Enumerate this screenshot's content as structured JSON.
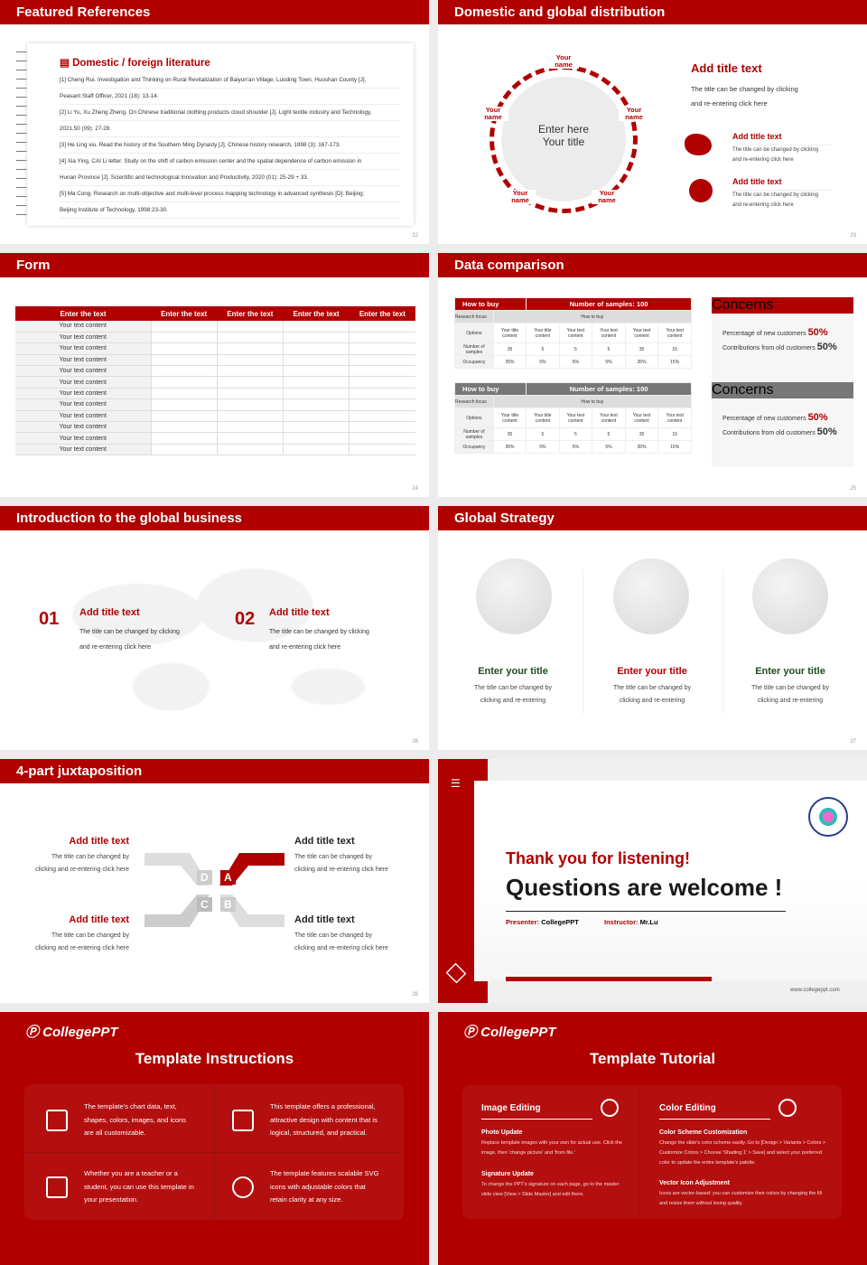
{
  "slides": [
    {
      "title": "Featured References",
      "page": "22",
      "heading": "Domestic / foreign literature",
      "refs": [
        "[1] Cheng Rui. Investigation and Thinking on Rural Revitalization of Baiyun'an Village, Luoding Town, Huoshan County [J].",
        "Peasant Staff Officer, 2021 (18): 13-14.",
        "[2] Li Yu, Xu Zheng Zheng. On Chinese traditional clothing products cloud shoulder [J]. Light textile industry and Technology,",
        "2021,50 (09): 27-28.",
        "[3] He Ling xiu. Read the history of the Southern Ming Dynasty [J]. Chinese history research, 1998 (3): 167-173.",
        "[4] Xia Ying, CAI Li letter. Study on the shift of carbon emission center and the spatial dependence of carbon emission in",
        "Hunan Province [J]. Scientific and technological Innovation and Productivity, 2020 (01): 25-29 + 33.",
        "[5] Ma Cong. Research on multi-objective and multi-level process mapping technology in advanced synthesis [D]. Beijing:",
        "Beijing Institute of Technology, 1998:23-30."
      ]
    },
    {
      "title": "Domestic and global distribution",
      "page": "23",
      "center": "Enter here\nYour title",
      "names": [
        "Your name",
        "Your name",
        "Your name",
        "Your name",
        "Your name"
      ],
      "main_title": "Add title text",
      "main_body": "The title can be changed by clicking\nand re-entering click here",
      "items": [
        {
          "title": "Add title text",
          "body": "The title can be changed by clicking\nand re-entering click here",
          "icon": "china-map-icon"
        },
        {
          "title": "Add title text",
          "body": "The title can be changed by clicking\nand re-entering click here",
          "icon": "globe-icon"
        }
      ]
    },
    {
      "title": "Form",
      "page": "24",
      "headers": [
        "Enter the text",
        "Enter the text",
        "Enter the text",
        "Enter the text",
        "Enter the text"
      ],
      "rows": [
        "Your text content",
        "Your text content",
        "Your text content",
        "Your text content",
        "Your text content",
        "Your text content",
        "Your text content",
        "Your text content",
        "Your text content",
        "Your text content",
        "Your text content",
        "Your text content"
      ]
    },
    {
      "title": "Data comparison",
      "page": "25",
      "tables": [
        {
          "h1": "How to buy",
          "h2": "Number of samples: 100",
          "focus": "Research focus",
          "focus_val": "How to buy",
          "row_labels": [
            "Options",
            "Number of samples",
            "Occupancy"
          ],
          "options": [
            "Your title content",
            "Your title content",
            "Your text content",
            "Your text content",
            "Your text content",
            "Your text content"
          ],
          "samples": [
            "35",
            "5",
            "5",
            "5",
            "35",
            "15"
          ],
          "occupancy": [
            "35%",
            "5%",
            "5%",
            "5%",
            "35%",
            "15%"
          ],
          "color": "#b00000"
        },
        {
          "h1": "How to buy",
          "h2": "Number of samples: 100",
          "focus": "Research focus",
          "focus_val": "How to buy",
          "row_labels": [
            "Options",
            "Number of samples",
            "Occupancy"
          ],
          "options": [
            "Your title content",
            "Your title content",
            "Your text content",
            "Your text content",
            "Your text content",
            "Your text content"
          ],
          "samples": [
            "35",
            "5",
            "5",
            "5",
            "35",
            "15"
          ],
          "occupancy": [
            "35%",
            "5%",
            "5%",
            "5%",
            "35%",
            "15%"
          ],
          "color": "#777777"
        }
      ],
      "concerns": [
        {
          "title": "Concerns",
          "l1": "Percentage of new customers",
          "v1": "50%",
          "l2": "Contributions from old customers",
          "v2": "50%",
          "color": "#b00000"
        },
        {
          "title": "Concerns",
          "l1": "Percentage of new customers",
          "v1": "50%",
          "l2": "Contributions from old customers",
          "v2": "50%",
          "color": "#777777"
        }
      ]
    },
    {
      "title": "Introduction to the global business",
      "page": "26",
      "items": [
        {
          "num": "01",
          "title": "Add title text",
          "body": "The title can be changed by clicking\nand re-entering click here"
        },
        {
          "num": "02",
          "title": "Add title text",
          "body": "The title can be changed by clicking\nand re-entering click here"
        }
      ]
    },
    {
      "title": "Global Strategy",
      "page": "27",
      "items": [
        {
          "title": "Enter your title",
          "body": "The title can be changed by\nclicking and re-entering",
          "color": "#1e4d1e"
        },
        {
          "title": "Enter your title",
          "body": "The title can be changed by\nclicking and re-entering",
          "color": "#b00000"
        },
        {
          "title": "Enter your title",
          "body": "The title can be changed by\nclicking and re-entering",
          "color": "#1e4d1e"
        }
      ]
    },
    {
      "title": "4-part juxtaposition",
      "page": "28",
      "letters": [
        "D",
        "A",
        "C",
        "B"
      ],
      "items": [
        {
          "title": "Add title text",
          "body": "The title can be changed by\nclicking and re-entering click here"
        },
        {
          "title": "Add title text",
          "body": "The title can be changed by\nclicking and re-entering click here"
        },
        {
          "title": "Add title text",
          "body": "The title can be changed by\nclicking and re-entering click here"
        },
        {
          "title": "Add title text",
          "body": "The title can be changed by\nclicking and re-entering click here"
        }
      ]
    },
    {
      "thanks": "Thank you for listening!",
      "questions": "Questions are welcome !",
      "presenter_label": "Presenter:",
      "presenter": "CollegePPT",
      "instructor_label": "Instructor:",
      "instructor": "Mr.Lu",
      "url": "www.collegeppt.com"
    },
    {
      "logo": "CollegePPT",
      "title": "Template Instructions",
      "items": [
        "The template's chart data, text,\nshapes, colors, images, and icons\nare all customizable.",
        "This template offers a professional,\nattractive design with content that is\nlogical, structured, and practical.",
        "Whether you are a teacher or a\nstudent, you can use this template in\nyour presentation.",
        "The template features scalable SVG\nicons with adjustable colors that\nretain clarity at any size."
      ]
    },
    {
      "logo": "CollegePPT",
      "title": "Template Tutorial",
      "cols": [
        {
          "title": "Image Editing",
          "sections": [
            {
              "h": "Photo Update",
              "b": "Replace template images with your own for actual use. Click the image, then 'change picture' and 'from file.'"
            },
            {
              "h": "Signature Update",
              "b": "To change the PPT's signature on each page, go to the master slide view [View > Slide Master] and edit there."
            }
          ]
        },
        {
          "title": "Color Editing",
          "sections": [
            {
              "h": "Color Scheme Customization",
              "b": "Change the slide's color scheme easily. Go to [Design > Variants > Colors > Customize Colors > Choose 'Shading 1' > Save] and select your preferred color to update the entire template's palette."
            },
            {
              "h": "Vector Icon Adjustment",
              "b": "Icons are vector-based: you can customize their colors by changing the fill and resize them without losing quality."
            }
          ]
        }
      ]
    }
  ],
  "colors": {
    "accent": "#b00000",
    "dark_green": "#1e4d1e",
    "gray": "#777777"
  }
}
